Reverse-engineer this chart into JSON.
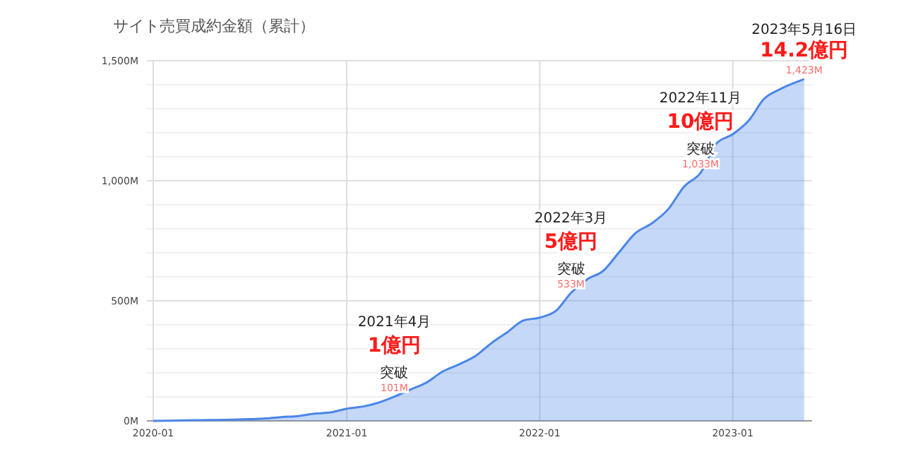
{
  "chart_data": {
    "type": "area",
    "title": "サイト売買成約金額（累計）",
    "x": [
      "2020-01",
      "2020-02",
      "2020-03",
      "2020-04",
      "2020-05",
      "2020-06",
      "2020-07",
      "2020-08",
      "2020-09",
      "2020-10",
      "2020-11",
      "2020-12",
      "2021-01",
      "2021-02",
      "2021-03",
      "2021-04",
      "2021-05",
      "2021-06",
      "2021-07",
      "2021-08",
      "2021-09",
      "2021-10",
      "2021-11",
      "2021-12",
      "2022-01",
      "2022-02",
      "2022-03",
      "2022-04",
      "2022-05",
      "2022-06",
      "2022-07",
      "2022-08",
      "2022-09",
      "2022-10",
      "2022-11",
      "2022-12",
      "2023-01",
      "2023-02",
      "2023-03",
      "2023-04",
      "2023-05-16"
    ],
    "series": [
      {
        "color": "#4a86e8",
        "values": [
          0,
          1,
          2,
          3,
          4,
          5,
          7,
          10,
          16,
          20,
          30,
          35,
          51,
          60,
          75,
          101,
          130,
          160,
          205,
          235,
          270,
          323,
          370,
          418,
          430,
          459,
          533,
          590,
          625,
          705,
          782,
          823,
          882,
          976,
          1033,
          1155,
          1194,
          1253,
          1341,
          1382,
          1423
        ],
        "value_labels": [
          null,
          null,
          null,
          null,
          null,
          null,
          null,
          null,
          null,
          null,
          null,
          null,
          null,
          null,
          null,
          "101M",
          null,
          null,
          null,
          null,
          null,
          null,
          null,
          null,
          null,
          null,
          "533M",
          null,
          null,
          null,
          null,
          null,
          null,
          null,
          "1,033M",
          null,
          null,
          null,
          null,
          null,
          "1,423M"
        ]
      }
    ],
    "xlim": [
      "2019-12-20",
      "2023-05-31"
    ],
    "xticks": [
      "2020-01",
      "2021-01",
      "2022-01",
      "2023-01"
    ],
    "ylim": [
      0,
      1500
    ],
    "yticks": [
      {
        "value": 0,
        "label": "0M"
      },
      {
        "value": 100,
        "label": null
      },
      {
        "value": 200,
        "label": null
      },
      {
        "value": 300,
        "label": null
      },
      {
        "value": 400,
        "label": null
      },
      {
        "value": 500,
        "label": "500M"
      },
      {
        "value": 600,
        "label": null
      },
      {
        "value": 700,
        "label": null
      },
      {
        "value": 800,
        "label": null
      },
      {
        "value": 900,
        "label": null
      },
      {
        "value": 1000,
        "label": "1,000M"
      },
      {
        "value": 1100,
        "label": null
      },
      {
        "value": 1200,
        "label": null
      },
      {
        "value": 1300,
        "label": null
      },
      {
        "value": 1400,
        "label": null
      },
      {
        "value": 1500,
        "label": "1,500M"
      }
    ],
    "grid": true,
    "annotations": [
      "2021年4月",
      "1億円",
      {
        "text": "突破",
        "x": "2021-04",
        "y": 101
      },
      "2022年3月",
      "5億円",
      {
        "text": "突破",
        "x": "2022-03",
        "y": 533
      },
      "2022年11月",
      "10億円",
      {
        "text": "突破",
        "x": "2022-11",
        "y": 1033
      },
      "2023年5月16日",
      {
        "text": "14.2億円",
        "x": "2023-05-16",
        "y": 1423
      }
    ]
  }
}
